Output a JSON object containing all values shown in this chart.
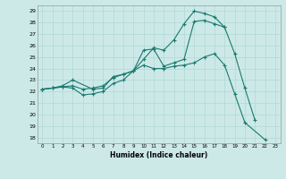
{
  "xlabel": "Humidex (Indice chaleur)",
  "xlim": [
    -0.5,
    23.5
  ],
  "ylim": [
    17.5,
    29.5
  ],
  "xticks": [
    0,
    1,
    2,
    3,
    4,
    5,
    6,
    7,
    8,
    9,
    10,
    11,
    12,
    13,
    14,
    15,
    16,
    17,
    18,
    19,
    20,
    21,
    22,
    23
  ],
  "yticks": [
    18,
    19,
    20,
    21,
    22,
    23,
    24,
    25,
    26,
    27,
    28,
    29
  ],
  "bg_color": "#cce9e8",
  "line_color": "#1a7a6e",
  "grid_color": "#b0d8d6",
  "line1_x": [
    0,
    1,
    2,
    3,
    5,
    6,
    7,
    8,
    9,
    10,
    11,
    12,
    13,
    14,
    15,
    16,
    17,
    18,
    19,
    20,
    21
  ],
  "line1_y": [
    22.2,
    22.3,
    22.5,
    23.0,
    22.2,
    22.3,
    23.3,
    23.5,
    23.8,
    24.8,
    25.8,
    25.6,
    26.5,
    27.9,
    29.0,
    28.8,
    28.5,
    27.6,
    25.3,
    22.3,
    19.5
  ],
  "line2_x": [
    0,
    1,
    2,
    3,
    4,
    5,
    6,
    7,
    8,
    9,
    10,
    11,
    12,
    13,
    14,
    15,
    16,
    17,
    18
  ],
  "line2_y": [
    22.2,
    22.3,
    22.4,
    22.5,
    22.2,
    22.3,
    22.5,
    23.2,
    23.5,
    23.8,
    25.6,
    25.7,
    24.2,
    24.5,
    24.8,
    28.1,
    28.2,
    27.9,
    27.6
  ],
  "line3_x": [
    0,
    1,
    2,
    3,
    4,
    5,
    6,
    7,
    8,
    9,
    10,
    11,
    12,
    13,
    14,
    15,
    16,
    17,
    18,
    19,
    20,
    22
  ],
  "line3_y": [
    22.2,
    22.3,
    22.4,
    22.3,
    21.7,
    21.8,
    22.0,
    22.7,
    23.0,
    23.8,
    24.3,
    24.0,
    24.0,
    24.2,
    24.3,
    24.5,
    25.0,
    25.3,
    24.3,
    21.8,
    19.3,
    17.8
  ]
}
